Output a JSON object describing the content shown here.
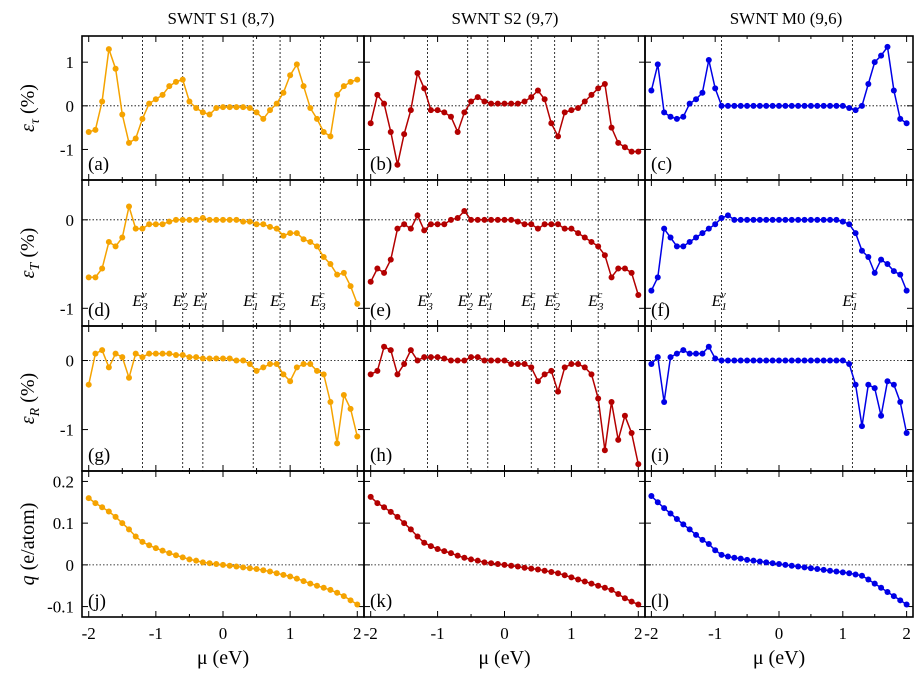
{
  "figure": {
    "x_axis_label": "μ (eV)",
    "x_ticks": [
      "-2",
      "-1",
      "0",
      "1",
      "2"
    ],
    "columns": [
      {
        "title": "SWNT S1 (8,7)",
        "color": "#f5a300"
      },
      {
        "title": "SWNT S2 (9,7)",
        "color": "#b30000"
      },
      {
        "title": "SWNT M0 (9,6)",
        "color": "#0000e6"
      }
    ],
    "rows": [
      {
        "key": "tau",
        "ylabel": "ετ (%)",
        "ylabel_main": "ε",
        "ylabel_sub": "τ",
        "ylabel_unit": " (%)",
        "ylim": [
          -1.7,
          1.6
        ],
        "ticks": [
          1,
          0,
          -1
        ],
        "tick_labels": [
          "1",
          "0",
          "-1"
        ]
      },
      {
        "key": "T",
        "ylabel": "εT (%)",
        "ylabel_main": "ε",
        "ylabel_sub": "T",
        "ylabel_unit": " (%)",
        "ylim": [
          -1.2,
          0.45
        ],
        "ticks": [
          0,
          -1
        ],
        "tick_labels": [
          "0",
          "-1"
        ]
      },
      {
        "key": "R",
        "ylabel": "εR (%)",
        "ylabel_main": "ε",
        "ylabel_sub": "R",
        "ylabel_unit": " (%)",
        "ylim": [
          -1.6,
          0.5
        ],
        "ticks": [
          0,
          -1
        ],
        "tick_labels": [
          "0",
          "-1"
        ]
      },
      {
        "key": "q",
        "ylabel": "q (e/atom)",
        "ylabel_main": "q",
        "ylabel_sub": "",
        "ylabel_unit": " (e/atom)",
        "ylim": [
          -0.125,
          0.225
        ],
        "ticks": [
          0.2,
          0.1,
          0,
          -0.1
        ],
        "tick_labels": [
          "0.2",
          "0.1",
          "0",
          "-0.1"
        ]
      }
    ],
    "panel_labels": [
      [
        "(a)",
        "(b)",
        "(c)"
      ],
      [
        "(d)",
        "(e)",
        "(f)"
      ],
      [
        "(g)",
        "(h)",
        "(i)"
      ],
      [
        "(j)",
        "(k)",
        "(l)"
      ]
    ],
    "transition_labels": [
      [
        {
          "main": "E",
          "sub": "3",
          "sup": "v",
          "x": -1.2
        },
        {
          "main": "E",
          "sub": "2",
          "sup": "v",
          "x": -0.6
        },
        {
          "main": "E",
          "sub": "1",
          "sup": "v",
          "x": -0.3
        },
        {
          "main": "E",
          "sub": "1",
          "sup": "c",
          "x": 0.45
        },
        {
          "main": "E",
          "sub": "2",
          "sup": "c",
          "x": 0.85
        },
        {
          "main": "E",
          "sub": "3",
          "sup": "c",
          "x": 1.45
        }
      ],
      [
        {
          "main": "E",
          "sub": "3",
          "sup": "v",
          "x": -1.15
        },
        {
          "main": "E",
          "sub": "2",
          "sup": "v",
          "x": -0.55
        },
        {
          "main": "E",
          "sub": "1",
          "sup": "v",
          "x": -0.25
        },
        {
          "main": "E",
          "sub": "1",
          "sup": "c",
          "x": 0.4
        },
        {
          "main": "E",
          "sub": "2",
          "sup": "c",
          "x": 0.75
        },
        {
          "main": "E",
          "sub": "3",
          "sup": "c",
          "x": 1.4
        }
      ],
      [
        {
          "main": "E",
          "sub": "1",
          "sup": "v",
          "x": -0.9
        },
        {
          "main": "E",
          "sub": "1",
          "sup": "c",
          "x": 1.15
        }
      ]
    ]
  },
  "chart_data": {
    "type": "line",
    "x": [
      -2.0,
      -1.9,
      -1.8,
      -1.7,
      -1.6,
      -1.5,
      -1.4,
      -1.3,
      -1.2,
      -1.1,
      -1.0,
      -0.9,
      -0.8,
      -0.7,
      -0.6,
      -0.5,
      -0.4,
      -0.3,
      -0.2,
      -0.1,
      0.0,
      0.1,
      0.2,
      0.3,
      0.4,
      0.5,
      0.6,
      0.7,
      0.8,
      0.9,
      1.0,
      1.1,
      1.2,
      1.3,
      1.4,
      1.5,
      1.6,
      1.7,
      1.8,
      1.9,
      2.0
    ],
    "xlabel": "μ (eV)",
    "xlim": [
      -2.1,
      2.1
    ],
    "vlines": [
      [
        -1.2,
        -0.6,
        -0.3,
        0.45,
        0.85,
        1.45
      ],
      [
        -1.15,
        -0.55,
        -0.25,
        0.4,
        0.75,
        1.4
      ],
      [
        -0.9,
        1.15
      ]
    ],
    "series": {
      "tau": [
        [
          -0.6,
          -0.55,
          0.1,
          1.3,
          0.85,
          -0.2,
          -0.85,
          -0.75,
          -0.3,
          0.05,
          0.15,
          0.25,
          0.45,
          0.55,
          0.6,
          0.1,
          -0.05,
          -0.15,
          -0.2,
          -0.05,
          -0.03,
          -0.03,
          -0.03,
          -0.03,
          -0.05,
          -0.15,
          -0.3,
          -0.1,
          0.05,
          0.3,
          0.7,
          0.95,
          0.45,
          -0.05,
          -0.3,
          -0.6,
          -0.7,
          0.25,
          0.45,
          0.55,
          0.6
        ],
        [
          -0.4,
          0.25,
          0.05,
          -0.6,
          -1.35,
          -0.65,
          -0.1,
          0.75,
          0.4,
          -0.1,
          -0.1,
          -0.15,
          -0.25,
          -0.6,
          -0.15,
          0.1,
          0.2,
          0.1,
          0.05,
          0.05,
          0.05,
          0.05,
          0.05,
          0.1,
          0.2,
          0.35,
          0.15,
          -0.4,
          -0.7,
          -0.15,
          -0.1,
          -0.05,
          0.1,
          0.25,
          0.4,
          0.5,
          -0.5,
          -0.85,
          -0.95,
          -1.05,
          -1.05
        ],
        [
          0.35,
          0.95,
          -0.15,
          -0.25,
          -0.3,
          -0.25,
          0.05,
          0.15,
          0.3,
          1.05,
          0.4,
          0.0,
          0.0,
          0.0,
          0.0,
          0.0,
          0.0,
          0.0,
          0.0,
          0.0,
          0.0,
          0.0,
          0.0,
          0.0,
          0.0,
          0.0,
          0.0,
          0.0,
          0.0,
          0.0,
          0.0,
          -0.05,
          -0.1,
          0.0,
          0.5,
          1.0,
          1.15,
          1.35,
          0.35,
          -0.3,
          -0.4
        ]
      ],
      "T": [
        [
          -0.65,
          -0.65,
          -0.55,
          -0.25,
          -0.3,
          -0.2,
          0.15,
          -0.1,
          -0.1,
          -0.05,
          -0.05,
          -0.05,
          -0.02,
          0.0,
          0.0,
          0.0,
          0.0,
          0.02,
          0.0,
          0.0,
          0.0,
          0.0,
          0.0,
          -0.02,
          -0.02,
          -0.05,
          -0.05,
          -0.08,
          -0.1,
          -0.18,
          -0.15,
          -0.15,
          -0.22,
          -0.25,
          -0.3,
          -0.42,
          -0.5,
          -0.62,
          -0.6,
          -0.75,
          -0.95
        ],
        [
          -0.7,
          -0.55,
          -0.6,
          -0.45,
          -0.1,
          -0.05,
          -0.1,
          0.05,
          -0.12,
          -0.05,
          -0.05,
          -0.05,
          0.0,
          0.02,
          0.1,
          0.0,
          0.0,
          0.0,
          0.0,
          0.0,
          0.0,
          0.0,
          -0.02,
          -0.05,
          -0.05,
          -0.1,
          -0.05,
          -0.05,
          -0.05,
          -0.1,
          -0.1,
          -0.15,
          -0.2,
          -0.25,
          -0.3,
          -0.4,
          -0.65,
          -0.55,
          -0.55,
          -0.6,
          -0.85
        ],
        [
          -0.8,
          -0.65,
          -0.1,
          -0.2,
          -0.3,
          -0.3,
          -0.25,
          -0.2,
          -0.15,
          -0.1,
          -0.05,
          0.02,
          0.05,
          0.0,
          0.0,
          0.0,
          0.0,
          0.0,
          0.0,
          0.0,
          0.0,
          0.0,
          0.0,
          0.0,
          0.0,
          0.0,
          0.0,
          0.0,
          0.0,
          0.0,
          -0.02,
          -0.05,
          -0.15,
          -0.35,
          -0.42,
          -0.6,
          -0.45,
          -0.5,
          -0.58,
          -0.62,
          -0.8
        ]
      ],
      "R": [
        [
          -0.35,
          0.1,
          0.15,
          -0.1,
          0.1,
          0.05,
          -0.25,
          0.1,
          0.05,
          0.1,
          0.1,
          0.1,
          0.1,
          0.08,
          0.08,
          0.05,
          0.05,
          0.03,
          0.03,
          0.03,
          0.03,
          0.03,
          0.0,
          0.0,
          -0.05,
          -0.15,
          -0.1,
          -0.05,
          -0.05,
          -0.2,
          -0.3,
          -0.1,
          -0.05,
          -0.05,
          -0.15,
          -0.2,
          -0.6,
          -1.2,
          -0.5,
          -0.7,
          -1.1
        ],
        [
          -0.2,
          -0.15,
          0.2,
          0.15,
          -0.2,
          -0.05,
          0.15,
          0.0,
          0.05,
          0.05,
          0.05,
          0.03,
          0.0,
          0.0,
          0.0,
          0.05,
          0.05,
          0.0,
          0.0,
          0.0,
          0.0,
          -0.05,
          -0.05,
          -0.05,
          -0.1,
          -0.3,
          -0.2,
          -0.15,
          -0.45,
          -0.1,
          -0.05,
          -0.05,
          -0.1,
          -0.2,
          -0.55,
          -1.3,
          -0.6,
          -1.15,
          -0.8,
          -1.05,
          -1.5
        ],
        [
          -0.05,
          0.05,
          -0.6,
          0.05,
          0.1,
          0.15,
          0.1,
          0.1,
          0.1,
          0.2,
          0.03,
          0.0,
          0.0,
          0.0,
          0.0,
          0.0,
          0.0,
          0.0,
          0.0,
          0.0,
          0.0,
          0.0,
          0.0,
          0.0,
          0.0,
          0.0,
          0.0,
          0.0,
          0.0,
          0.0,
          0.0,
          -0.05,
          -0.35,
          -0.95,
          -0.35,
          -0.4,
          -0.8,
          -0.3,
          -0.35,
          -0.6,
          -1.05
        ]
      ],
      "q": [
        [
          0.16,
          0.148,
          0.138,
          0.128,
          0.115,
          0.1,
          0.085,
          0.068,
          0.055,
          0.047,
          0.04,
          0.034,
          0.028,
          0.023,
          0.018,
          0.013,
          0.01,
          0.006,
          0.004,
          0.002,
          0.0,
          -0.002,
          -0.004,
          -0.006,
          -0.008,
          -0.01,
          -0.013,
          -0.016,
          -0.02,
          -0.024,
          -0.028,
          -0.033,
          -0.039,
          -0.045,
          -0.05,
          -0.055,
          -0.06,
          -0.067,
          -0.075,
          -0.085,
          -0.095
        ],
        [
          0.163,
          0.148,
          0.138,
          0.127,
          0.115,
          0.1,
          0.085,
          0.068,
          0.053,
          0.045,
          0.038,
          0.033,
          0.028,
          0.022,
          0.017,
          0.013,
          0.01,
          0.006,
          0.004,
          0.002,
          0.0,
          -0.002,
          -0.004,
          -0.007,
          -0.009,
          -0.011,
          -0.014,
          -0.017,
          -0.02,
          -0.025,
          -0.03,
          -0.035,
          -0.04,
          -0.045,
          -0.05,
          -0.055,
          -0.06,
          -0.07,
          -0.08,
          -0.088,
          -0.095
        ],
        [
          0.165,
          0.15,
          0.136,
          0.123,
          0.11,
          0.097,
          0.085,
          0.072,
          0.06,
          0.05,
          0.035,
          0.024,
          0.02,
          0.017,
          0.015,
          0.012,
          0.01,
          0.008,
          0.006,
          0.004,
          0.002,
          0.0,
          -0.002,
          -0.004,
          -0.006,
          -0.008,
          -0.01,
          -0.012,
          -0.014,
          -0.016,
          -0.018,
          -0.02,
          -0.023,
          -0.026,
          -0.035,
          -0.045,
          -0.055,
          -0.065,
          -0.075,
          -0.085,
          -0.095
        ]
      ]
    }
  }
}
